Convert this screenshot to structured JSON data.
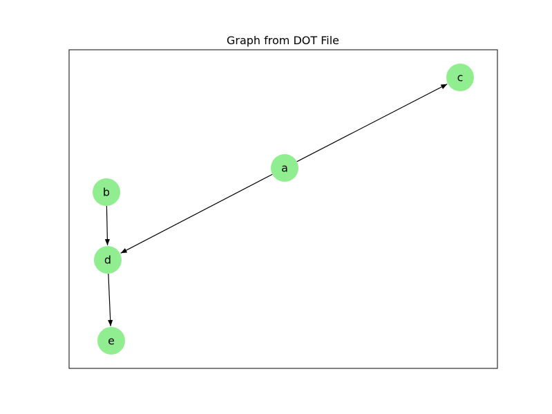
{
  "title": "Graph from DOT File",
  "colors": {
    "node_fill": "#90ee90",
    "edge": "#000000",
    "frame": "#000000",
    "background": "#ffffff"
  },
  "nodes": [
    {
      "id": "a",
      "label": "a"
    },
    {
      "id": "b",
      "label": "b"
    },
    {
      "id": "c",
      "label": "c"
    },
    {
      "id": "d",
      "label": "d"
    },
    {
      "id": "e",
      "label": "e"
    }
  ],
  "edges": [
    {
      "from": "a",
      "to": "c"
    },
    {
      "from": "a",
      "to": "d"
    },
    {
      "from": "b",
      "to": "d"
    },
    {
      "from": "d",
      "to": "e"
    }
  ]
}
